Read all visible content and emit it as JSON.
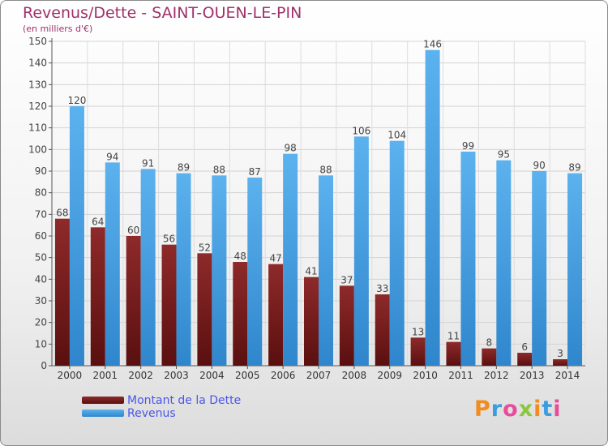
{
  "title": "Revenus/Dette - SAINT-OUEN-LE-PIN",
  "subtitle": "(en milliers d'€)",
  "logo": "Proxiti",
  "colors": {
    "debt": "#7a1f1f",
    "revenue": "#4fa6e6",
    "title": "#a0306a",
    "legend_text": "#4a56e8"
  },
  "chart_data": {
    "type": "bar",
    "categories": [
      "2000",
      "2001",
      "2002",
      "2003",
      "2004",
      "2005",
      "2006",
      "2007",
      "2008",
      "2009",
      "2010",
      "2011",
      "2012",
      "2013",
      "2014"
    ],
    "series": [
      {
        "name": "Montant de la Dette",
        "values": [
          68,
          64,
          60,
          56,
          52,
          48,
          47,
          41,
          37,
          33,
          13,
          11,
          8,
          6,
          3
        ]
      },
      {
        "name": "Revenus",
        "values": [
          120,
          94,
          91,
          89,
          88,
          87,
          98,
          88,
          106,
          104,
          146,
          99,
          95,
          90,
          89
        ]
      }
    ],
    "ylim": [
      0,
      150
    ],
    "yticks": [
      0,
      10,
      20,
      30,
      40,
      50,
      60,
      70,
      80,
      90,
      100,
      110,
      120,
      130,
      140,
      150
    ],
    "grid": true,
    "legend": "bottom-left"
  }
}
